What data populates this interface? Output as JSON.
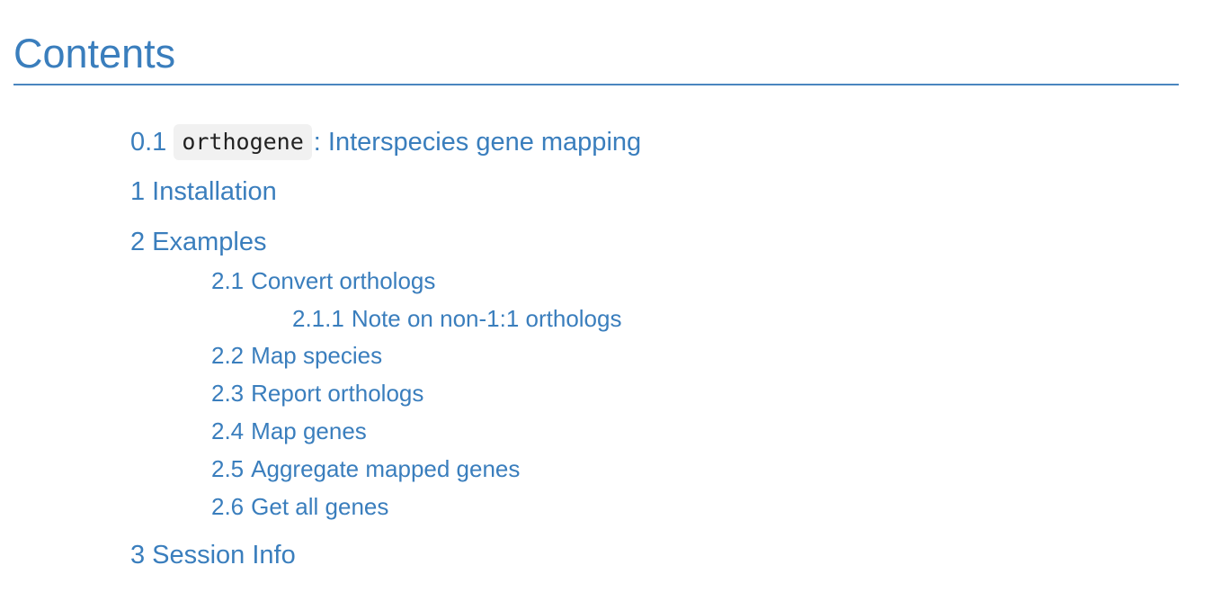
{
  "toc": {
    "title": "Contents",
    "entries": [
      {
        "number": "0.1",
        "code": "orthogene",
        "label": ": Interspecies gene mapping"
      },
      {
        "number": "1",
        "label": "Installation"
      },
      {
        "number": "2",
        "label": "Examples"
      },
      {
        "number": "2.1",
        "label": "Convert orthologs"
      },
      {
        "number": "2.1.1",
        "label": "Note on non-1:1 orthologs"
      },
      {
        "number": "2.2",
        "label": "Map species"
      },
      {
        "number": "2.3",
        "label": "Report orthologs"
      },
      {
        "number": "2.4",
        "label": "Map genes"
      },
      {
        "number": "2.5",
        "label": "Aggregate mapped genes"
      },
      {
        "number": "2.6",
        "label": "Get all genes"
      },
      {
        "number": "3",
        "label": "Session Info"
      }
    ]
  },
  "colors": {
    "link": "#3a7ebd",
    "rule": "#4a86bf",
    "code_background": "#f1f1f1",
    "code_text": "#222222"
  }
}
